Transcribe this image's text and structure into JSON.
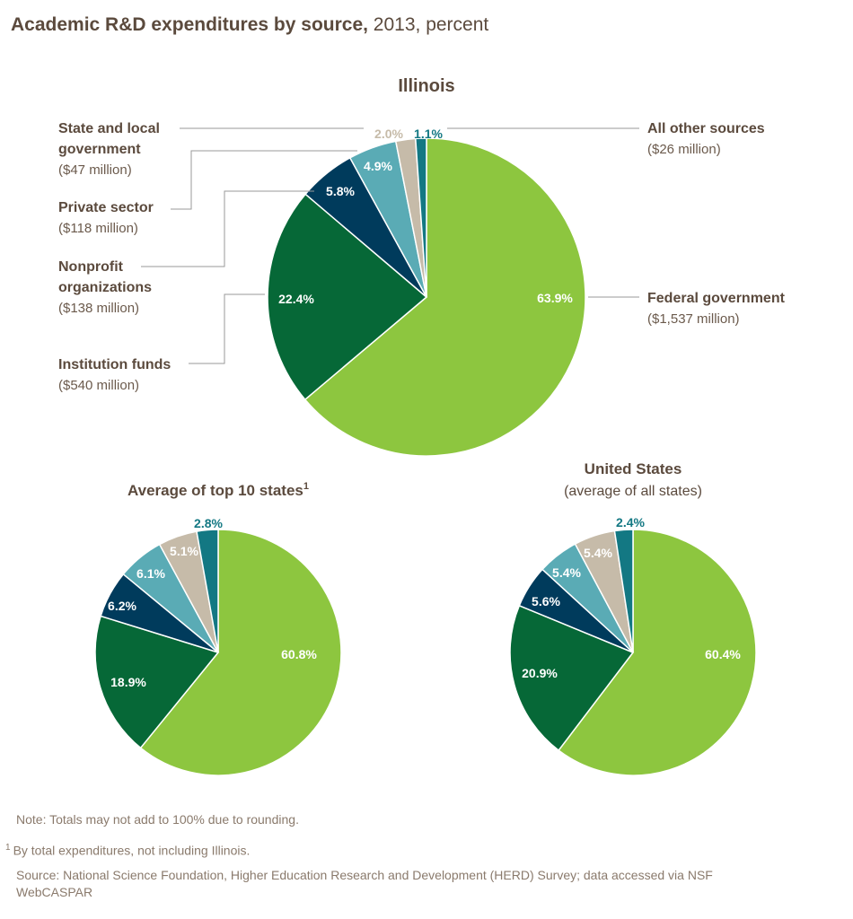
{
  "title_bold": "Academic R&D expenditures by source,",
  "title_rest": " 2013, percent",
  "colors": {
    "federal": "#8dc63f",
    "institution": "#066837",
    "nonprofit": "#003b5c",
    "private": "#5aabb5",
    "state_local": "#c6bba9",
    "other": "#137883"
  },
  "chart_data": [
    {
      "type": "pie",
      "title": "Illinois",
      "slices": [
        {
          "key": "federal",
          "label": "63.9%",
          "value": 63.9,
          "name": "Federal government",
          "amount": "($1,537 million)"
        },
        {
          "key": "institution",
          "label": "22.4%",
          "value": 22.4,
          "name": "Institution funds",
          "amount": "($540 million)"
        },
        {
          "key": "nonprofit",
          "label": "5.8%",
          "value": 5.8,
          "name": "Nonprofit organizations",
          "amount": "($138 million)"
        },
        {
          "key": "private",
          "label": "4.9%",
          "value": 4.9,
          "name": "Private sector",
          "amount": "($118 million)"
        },
        {
          "key": "state_local",
          "label": "2.0%",
          "value": 2.0,
          "name": "State and local government",
          "amount": "($47 million)"
        },
        {
          "key": "other",
          "label": "1.1%",
          "value": 1.1,
          "name": "All other sources",
          "amount": "($26 million)"
        }
      ]
    },
    {
      "type": "pie",
      "title": "Average of top 10 states",
      "title_sup": "1",
      "slices": [
        {
          "key": "federal",
          "label": "60.8%",
          "value": 60.8
        },
        {
          "key": "institution",
          "label": "18.9%",
          "value": 18.9
        },
        {
          "key": "nonprofit",
          "label": "6.2%",
          "value": 6.2
        },
        {
          "key": "private",
          "label": "6.1%",
          "value": 6.1
        },
        {
          "key": "state_local",
          "label": "5.1%",
          "value": 5.1
        },
        {
          "key": "other",
          "label": "2.8%",
          "value": 2.8
        }
      ]
    },
    {
      "type": "pie",
      "title": "United States",
      "subtitle": "(average of all states)",
      "slices": [
        {
          "key": "federal",
          "label": "60.4%",
          "value": 60.4
        },
        {
          "key": "institution",
          "label": "20.9%",
          "value": 20.9
        },
        {
          "key": "nonprofit",
          "label": "5.6%",
          "value": 5.6
        },
        {
          "key": "private",
          "label": "5.4%",
          "value": 5.4
        },
        {
          "key": "state_local",
          "label": "5.4%",
          "value": 5.4
        },
        {
          "key": "other",
          "label": "2.4%",
          "value": 2.4
        }
      ]
    }
  ],
  "notes": {
    "note": "Note: Totals may not add to 100% due to rounding.",
    "footnote_mark": "1",
    "footnote": "By total expenditures, not including Illinois.",
    "source": "Source: National Science Foundation, Higher Education Research and Development (HERD) Survey; data accessed via NSF WebCASPAR"
  }
}
